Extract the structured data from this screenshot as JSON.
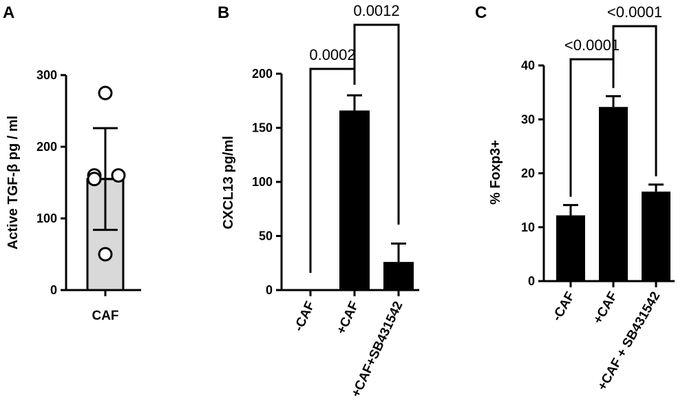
{
  "panels": {
    "a": "A",
    "b": "B",
    "c": "C"
  },
  "chart_data": [
    {
      "panel": "A",
      "type": "bar",
      "ylabel": "Active TGF-β pg / ml",
      "ylim": [
        0,
        300
      ],
      "yticks": [
        "0",
        "100",
        "200",
        "300"
      ],
      "categories": [
        "CAF"
      ],
      "values": [
        155
      ],
      "error": [
        71
      ],
      "points": [
        275,
        160,
        160,
        155,
        50
      ],
      "colors": {
        "bar": "#d9d9d9",
        "edge": "#000000"
      }
    },
    {
      "panel": "B",
      "type": "bar",
      "ylabel": "CXCL13 pg/ml",
      "ylim": [
        0,
        200
      ],
      "yticks": [
        "0",
        "50",
        "100",
        "150",
        "200"
      ],
      "categories": [
        "-CAF",
        "+CAF",
        "+CAF+SB431542"
      ],
      "values": [
        0,
        166,
        26
      ],
      "error": [
        0,
        14,
        17
      ],
      "comparisons": [
        {
          "from": 0,
          "to": 1,
          "p": "0.0002"
        },
        {
          "from": 1,
          "to": 2,
          "p": "0.0012"
        }
      ],
      "colors": {
        "bar": "#000000"
      }
    },
    {
      "panel": "C",
      "type": "bar",
      "ylabel": "% Foxp3+",
      "ylim": [
        0,
        40
      ],
      "yticks": [
        "0",
        "10",
        "20",
        "30",
        "40"
      ],
      "categories": [
        "-CAF",
        "+CAF",
        "+CAF + SB431542"
      ],
      "values": [
        12.2,
        32.3,
        16.6
      ],
      "error": [
        1.9,
        2.0,
        1.3
      ],
      "comparisons": [
        {
          "from": 0,
          "to": 1,
          "p": "<0.0001"
        },
        {
          "from": 1,
          "to": 2,
          "p": "<0.0001"
        }
      ],
      "colors": {
        "bar": "#000000"
      }
    }
  ]
}
